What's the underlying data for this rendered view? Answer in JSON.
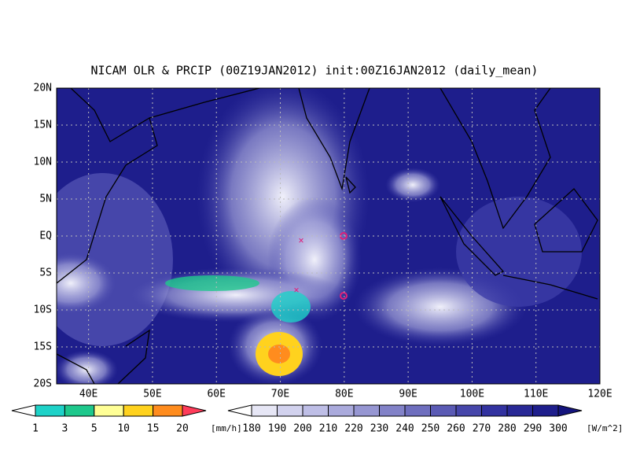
{
  "title": "NICAM OLR & PRCIP (00Z19JAN2012) init:00Z16JAN2012 (daily_mean)",
  "lat_ticks": [
    "20N",
    "15N",
    "10N",
    "5N",
    "EQ",
    "5S",
    "10S",
    "15S",
    "20S"
  ],
  "lon_ticks": [
    "40E",
    "50E",
    "60E",
    "70E",
    "80E",
    "90E",
    "100E",
    "110E",
    "120E"
  ],
  "precip_legend": {
    "labels": [
      1,
      3,
      5,
      10,
      15,
      20
    ],
    "unit": "[mm/h]",
    "colors": [
      "#ffffff",
      "#1ed2c8",
      "#1ec88c",
      "#ffff96",
      "#ffd21e",
      "#ff8c1e",
      "#ff3c5a"
    ]
  },
  "olr_legend": {
    "labels": [
      180,
      190,
      200,
      210,
      220,
      230,
      240,
      250,
      260,
      270,
      280,
      290,
      300
    ],
    "unit": "[W/m^2]",
    "colors": [
      "#ffffff",
      "#e6e6f5",
      "#d2d2ee",
      "#bebee6",
      "#aaaadc",
      "#9696d2",
      "#8282c8",
      "#6e6ebe",
      "#5a5ab4",
      "#4646aa",
      "#3232a0",
      "#282896",
      "#1e1e8c",
      "#14147d"
    ]
  }
}
